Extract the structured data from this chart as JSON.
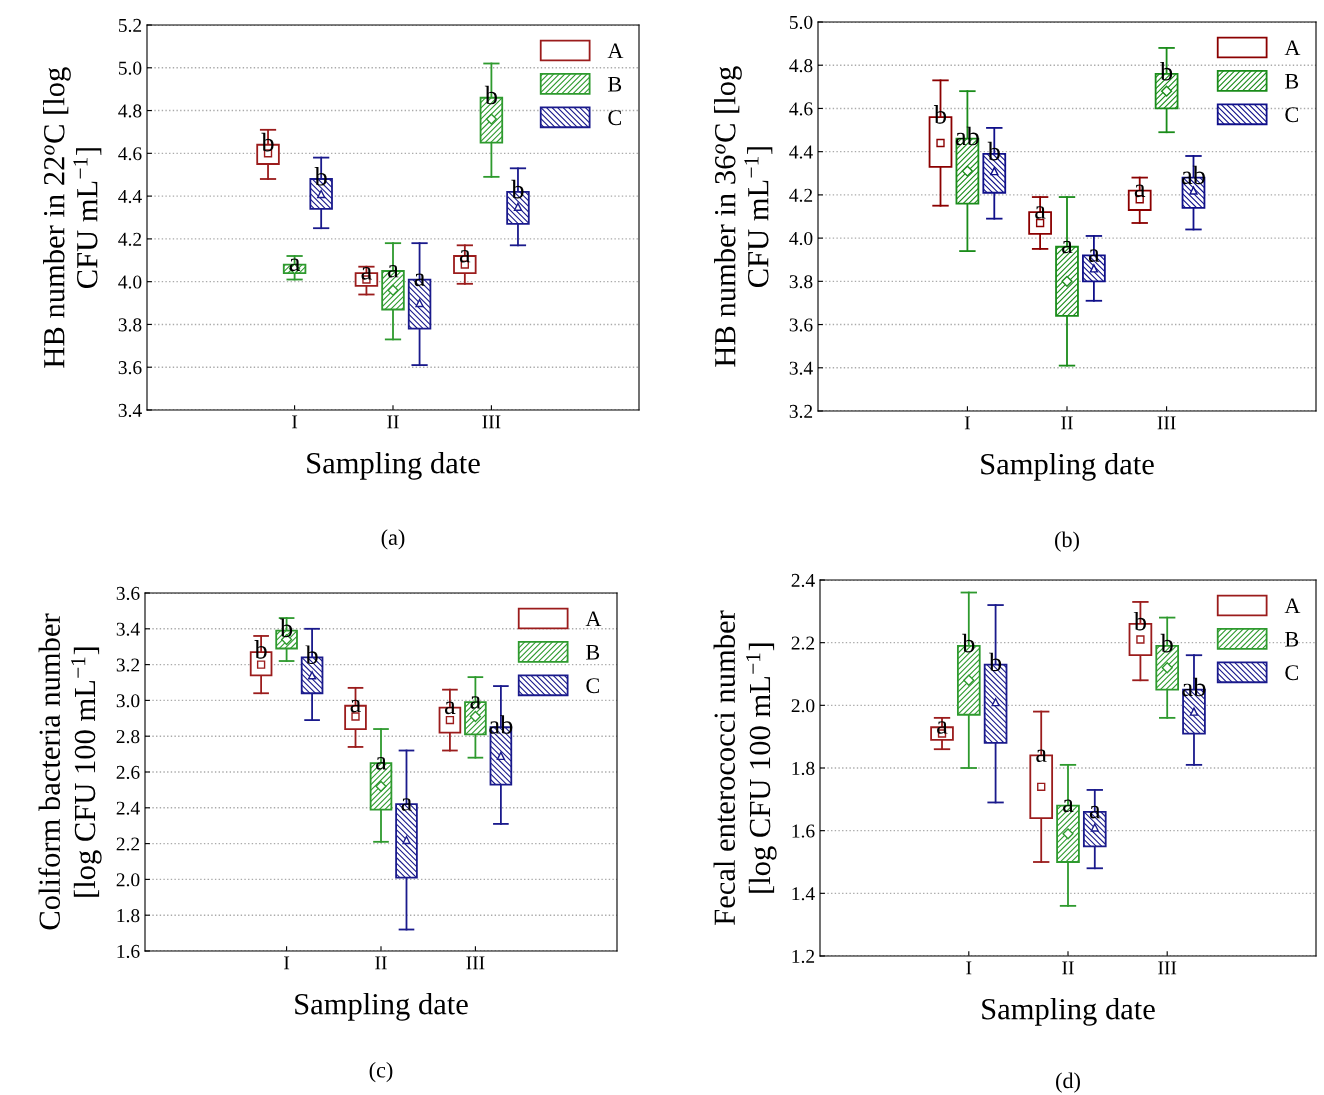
{
  "chart_data": [
    {
      "type": "box",
      "xlabel": "Sampling date",
      "ylabel": "HB number in 22$^{o}$C [log\nCFU mL$^{−1}$]",
      "categories": [
        "I",
        "II",
        "III"
      ],
      "ylim": [
        3.4,
        5.2
      ],
      "yticks": [
        3.4,
        3.6,
        3.8,
        {
          "value": 4,
          "label": "4.0"
        },
        4.2,
        4.4,
        4.6,
        4.8,
        {
          "value": 5,
          "label": "5.0"
        },
        5.2
      ],
      "grid": "y",
      "legend": "top right",
      "annotations": [
        "(a)"
      ],
      "series": [
        {
          "name": "A",
          "color": "#9b1c1c",
          "marker": "square",
          "value_labels": [
            "b",
            "a",
            "a"
          ],
          "boxes": [
            {
              "low": 4.48,
              "q1": 4.55,
              "median": 4.6,
              "q3": 4.64,
              "high": 4.71
            },
            {
              "low": 3.94,
              "q1": 3.98,
              "median": 4.01,
              "q3": 4.04,
              "high": 4.07
            },
            {
              "low": 3.99,
              "q1": 4.04,
              "median": 4.08,
              "q3": 4.12,
              "high": 4.17
            }
          ]
        },
        {
          "name": "B",
          "color": "#2e9a2e",
          "marker": "diamond",
          "value_labels": [
            "a",
            "a",
            "b"
          ],
          "boxes": [
            {
              "low": 4.01,
              "q1": 4.04,
              "median": 4.06,
              "q3": 4.08,
              "high": 4.12
            },
            {
              "low": 3.73,
              "q1": 3.87,
              "median": 3.96,
              "q3": 4.05,
              "high": 4.18
            },
            {
              "low": 4.49,
              "q1": 4.65,
              "median": 4.76,
              "q3": 4.86,
              "high": 5.02
            }
          ]
        },
        {
          "name": "C",
          "color": "#1a1a8c",
          "marker": "triangle",
          "value_labels": [
            "b",
            "a",
            "b"
          ],
          "boxes": [
            {
              "low": 4.25,
              "q1": 4.34,
              "median": 4.41,
              "q3": 4.48,
              "high": 4.58
            },
            {
              "low": 3.61,
              "q1": 3.78,
              "median": 3.9,
              "q3": 4.01,
              "high": 4.18
            },
            {
              "low": 4.17,
              "q1": 4.27,
              "median": 4.35,
              "q3": 4.42,
              "high": 4.53
            }
          ]
        }
      ]
    },
    {
      "type": "box",
      "xlabel": "Sampling date",
      "ylabel": "HB number in 36$^{o}$C [log\nCFU mL$^{−1}$]",
      "categories": [
        "I",
        "II",
        "III"
      ],
      "ylim": [
        3.2,
        5.0
      ],
      "yticks": [
        3.2,
        3.4,
        3.6,
        3.8,
        {
          "value": 4,
          "label": "4.0"
        },
        4.2,
        4.4,
        4.6,
        4.8,
        {
          "value": 5,
          "label": "5.0"
        }
      ],
      "grid": "y",
      "legend": "top right",
      "annotations": [
        "(b)"
      ],
      "series": [
        {
          "name": "A",
          "color": "#8b0000",
          "marker": "square",
          "value_labels": [
            "b",
            "a",
            "a"
          ],
          "boxes": [
            {
              "low": 4.15,
              "q1": 4.33,
              "median": 4.44,
              "q3": 4.56,
              "high": 4.73
            },
            {
              "low": 3.95,
              "q1": 4.02,
              "median": 4.07,
              "q3": 4.12,
              "high": 4.19
            },
            {
              "low": 4.07,
              "q1": 4.13,
              "median": 4.18,
              "q3": 4.22,
              "high": 4.28
            }
          ]
        },
        {
          "name": "B",
          "color": "#1a8c1a",
          "marker": "diamond",
          "value_labels": [
            "ab",
            "a",
            "b"
          ],
          "boxes": [
            {
              "low": 3.94,
              "q1": 4.16,
              "median": 4.31,
              "q3": 4.46,
              "high": 4.68
            },
            {
              "low": 3.41,
              "q1": 3.64,
              "median": 3.8,
              "q3": 3.96,
              "high": 4.19
            },
            {
              "low": 4.49,
              "q1": 4.6,
              "median": 4.68,
              "q3": 4.76,
              "high": 4.88
            }
          ]
        },
        {
          "name": "C",
          "color": "#10108a",
          "marker": "triangle",
          "value_labels": [
            "b",
            "a",
            "ab"
          ],
          "boxes": [
            {
              "low": 4.09,
              "q1": 4.21,
              "median": 4.31,
              "q3": 4.39,
              "high": 4.51
            },
            {
              "low": 3.71,
              "q1": 3.8,
              "median": 3.86,
              "q3": 3.92,
              "high": 4.01
            },
            {
              "low": 4.04,
              "q1": 4.14,
              "median": 4.22,
              "q3": 4.28,
              "high": 4.38
            }
          ]
        }
      ]
    },
    {
      "type": "box",
      "xlabel": "Sampling date",
      "ylabel": "Coliform bacteria number\n[log CFU 100 mL$^{−1}$]",
      "categories": [
        "I",
        "II",
        "III"
      ],
      "ylim": [
        1.6,
        3.6
      ],
      "yticks": [
        1.6,
        1.8,
        {
          "value": 2,
          "label": "2.0"
        },
        2.2,
        2.4,
        2.6,
        2.8,
        {
          "value": 3,
          "label": "3.0"
        },
        3.2,
        3.4,
        3.6
      ],
      "grid": "y",
      "legend": "top right",
      "annotations": [
        "(c)"
      ],
      "series": [
        {
          "name": "A",
          "color": "#9b1c1c",
          "marker": "square",
          "value_labels": [
            "b",
            "a",
            "a"
          ],
          "boxes": [
            {
              "low": 3.04,
              "q1": 3.14,
              "median": 3.2,
              "q3": 3.27,
              "high": 3.36
            },
            {
              "low": 2.74,
              "q1": 2.84,
              "median": 2.91,
              "q3": 2.97,
              "high": 3.07
            },
            {
              "low": 2.72,
              "q1": 2.82,
              "median": 2.89,
              "q3": 2.96,
              "high": 3.06
            }
          ]
        },
        {
          "name": "B",
          "color": "#2e9a2e",
          "marker": "diamond",
          "value_labels": [
            "b",
            "a",
            "a"
          ],
          "boxes": [
            {
              "low": 3.22,
              "q1": 3.29,
              "median": 3.34,
              "q3": 3.39,
              "high": 3.46
            },
            {
              "low": 2.21,
              "q1": 2.39,
              "median": 2.52,
              "q3": 2.65,
              "high": 2.84
            },
            {
              "low": 2.68,
              "q1": 2.81,
              "median": 2.91,
              "q3": 2.99,
              "high": 3.13
            }
          ]
        },
        {
          "name": "C",
          "color": "#1a1a8c",
          "marker": "triangle",
          "value_labels": [
            "b",
            "a",
            "ab"
          ],
          "boxes": [
            {
              "low": 2.89,
              "q1": 3.04,
              "median": 3.14,
              "q3": 3.24,
              "high": 3.4
            },
            {
              "low": 1.72,
              "q1": 2.01,
              "median": 2.22,
              "q3": 2.42,
              "high": 2.72
            },
            {
              "low": 2.31,
              "q1": 2.53,
              "median": 2.69,
              "q3": 2.85,
              "high": 3.08
            }
          ]
        }
      ]
    },
    {
      "type": "box",
      "xlabel": "Sampling date",
      "ylabel": "Fecal enterococci number\n[log CFU 100 mL$^{−1}$]",
      "categories": [
        "I",
        "II",
        "III"
      ],
      "ylim": [
        1.2,
        2.4
      ],
      "yticks": [
        1.2,
        1.4,
        1.6,
        1.8,
        {
          "value": 2,
          "label": "2.0"
        },
        2.2,
        2.4
      ],
      "grid": "y",
      "legend": "top right",
      "annotations": [
        "(d)"
      ],
      "series": [
        {
          "name": "A",
          "color": "#9b1c1c",
          "marker": "square",
          "value_labels": [
            "a",
            "a",
            "b"
          ],
          "boxes": [
            {
              "low": 1.86,
              "q1": 1.89,
              "median": 1.91,
              "q3": 1.93,
              "high": 1.96
            },
            {
              "low": 1.5,
              "q1": 1.64,
              "median": 1.74,
              "q3": 1.84,
              "high": 1.98
            },
            {
              "low": 2.08,
              "q1": 2.16,
              "median": 2.21,
              "q3": 2.26,
              "high": 2.33
            }
          ]
        },
        {
          "name": "B",
          "color": "#2e9a2e",
          "marker": "diamond",
          "value_labels": [
            "b",
            "a",
            "b"
          ],
          "boxes": [
            {
              "low": 1.8,
              "q1": 1.97,
              "median": 2.08,
              "q3": 2.19,
              "high": 2.36
            },
            {
              "low": 1.36,
              "q1": 1.5,
              "median": 1.59,
              "q3": 1.68,
              "high": 1.81
            },
            {
              "low": 1.96,
              "q1": 2.05,
              "median": 2.12,
              "q3": 2.19,
              "high": 2.28
            }
          ]
        },
        {
          "name": "C",
          "color": "#1a1a8c",
          "marker": "triangle",
          "value_labels": [
            "b",
            "a",
            "ab"
          ],
          "boxes": [
            {
              "low": 1.69,
              "q1": 1.88,
              "median": 2.01,
              "q3": 2.13,
              "high": 2.32
            },
            {
              "low": 1.48,
              "q1": 1.55,
              "median": 1.61,
              "q3": 1.66,
              "high": 1.73
            },
            {
              "low": 1.81,
              "q1": 1.91,
              "median": 1.98,
              "q3": 2.05,
              "high": 2.16
            }
          ]
        }
      ]
    }
  ]
}
